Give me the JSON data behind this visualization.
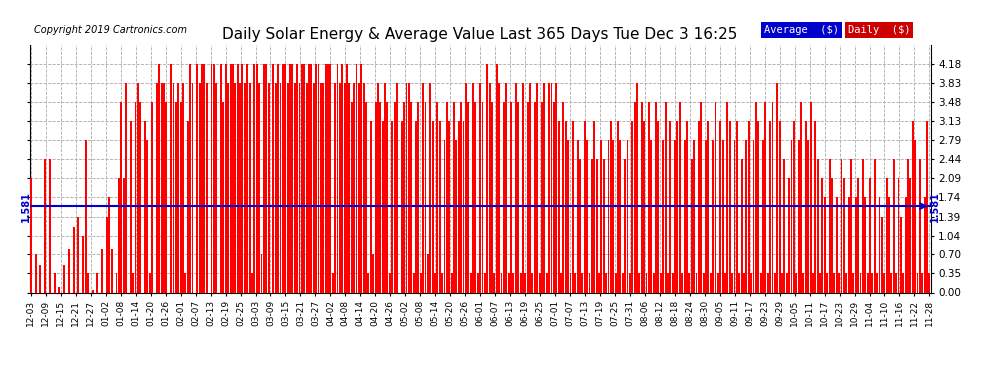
{
  "title": "Daily Solar Energy & Average Value Last 365 Days Tue Dec 3 16:25",
  "copyright": "Copyright 2019 Cartronics.com",
  "average_value": 1.581,
  "bar_color": "#FF0000",
  "avg_line_color": "#0000CC",
  "background_color": "#FFFFFF",
  "ylim": [
    0.0,
    4.53
  ],
  "yticks": [
    0.0,
    0.35,
    0.7,
    1.04,
    1.39,
    1.74,
    2.09,
    2.44,
    2.79,
    3.13,
    3.48,
    3.83,
    4.18
  ],
  "legend_avg_color": "#0000CC",
  "legend_daily_color": "#CC0000",
  "legend_avg_label": "Average  ($)",
  "legend_daily_label": "Daily  ($)",
  "xtick_labels": [
    "12-03",
    "12-09",
    "12-15",
    "12-21",
    "12-27",
    "01-02",
    "01-08",
    "01-14",
    "01-20",
    "01-26",
    "02-01",
    "02-07",
    "02-13",
    "02-19",
    "02-25",
    "03-03",
    "03-09",
    "03-15",
    "03-21",
    "03-27",
    "04-02",
    "04-08",
    "04-14",
    "04-20",
    "04-26",
    "05-02",
    "05-08",
    "05-14",
    "05-20",
    "05-26",
    "06-01",
    "06-07",
    "06-13",
    "06-19",
    "06-25",
    "07-01",
    "07-07",
    "07-13",
    "07-19",
    "07-25",
    "07-31",
    "08-06",
    "08-12",
    "08-18",
    "08-24",
    "08-30",
    "09-05",
    "09-11",
    "09-17",
    "09-23",
    "09-29",
    "10-05",
    "10-11",
    "10-17",
    "10-23",
    "10-29",
    "11-04",
    "11-10",
    "11-16",
    "11-22",
    "11-28"
  ],
  "daily_values": [
    2.09,
    0.0,
    0.7,
    0.0,
    0.5,
    0.0,
    2.44,
    0.0,
    2.44,
    0.0,
    0.35,
    0.0,
    0.1,
    0.0,
    0.5,
    0.0,
    0.8,
    0.0,
    1.2,
    0.0,
    1.39,
    0.0,
    1.04,
    2.79,
    0.35,
    0.0,
    0.05,
    0.0,
    0.35,
    0.0,
    0.8,
    0.0,
    1.39,
    1.74,
    0.8,
    0.0,
    0.35,
    2.09,
    3.48,
    2.09,
    3.83,
    0.0,
    3.13,
    0.35,
    3.48,
    3.83,
    3.48,
    0.0,
    3.13,
    2.79,
    0.35,
    3.48,
    0.0,
    3.83,
    4.18,
    3.83,
    3.83,
    3.48,
    0.0,
    4.18,
    3.83,
    3.48,
    3.83,
    3.48,
    3.83,
    0.35,
    3.13,
    4.18,
    3.83,
    0.0,
    4.18,
    3.83,
    4.18,
    4.18,
    3.83,
    0.0,
    4.18,
    4.18,
    3.83,
    0.0,
    4.18,
    3.48,
    4.18,
    3.83,
    4.18,
    4.18,
    3.83,
    4.18,
    3.83,
    4.18,
    3.83,
    4.18,
    3.83,
    0.35,
    4.18,
    4.18,
    3.83,
    0.7,
    4.18,
    4.18,
    3.83,
    0.0,
    4.18,
    3.83,
    4.18,
    3.83,
    4.18,
    4.18,
    3.83,
    4.18,
    4.18,
    3.83,
    4.18,
    3.83,
    4.18,
    4.18,
    3.83,
    4.18,
    4.18,
    3.83,
    4.18,
    4.18,
    3.83,
    3.83,
    4.18,
    4.18,
    4.18,
    0.35,
    3.83,
    4.18,
    3.83,
    4.18,
    3.83,
    4.18,
    3.83,
    3.48,
    3.83,
    4.18,
    3.83,
    4.18,
    3.83,
    3.48,
    0.35,
    3.13,
    0.7,
    3.48,
    3.83,
    3.48,
    3.13,
    3.83,
    3.48,
    0.35,
    3.13,
    3.48,
    3.83,
    0.0,
    3.13,
    3.48,
    3.83,
    3.83,
    3.48,
    0.35,
    3.13,
    3.48,
    0.35,
    3.83,
    3.48,
    0.7,
    3.83,
    3.13,
    0.35,
    3.48,
    3.13,
    0.35,
    2.79,
    3.48,
    3.13,
    0.35,
    3.48,
    2.79,
    3.13,
    3.48,
    3.13,
    3.83,
    3.48,
    0.35,
    3.83,
    3.48,
    0.35,
    3.83,
    3.48,
    0.35,
    4.18,
    3.83,
    3.48,
    0.35,
    4.18,
    3.83,
    0.35,
    3.48,
    3.83,
    0.35,
    3.48,
    0.35,
    3.83,
    3.48,
    0.35,
    3.83,
    0.35,
    3.48,
    3.83,
    0.35,
    3.48,
    3.83,
    0.35,
    3.48,
    3.83,
    0.35,
    3.83,
    3.83,
    3.48,
    3.83,
    3.13,
    0.35,
    3.48,
    3.13,
    2.79,
    0.35,
    3.13,
    0.35,
    2.79,
    2.44,
    0.35,
    3.13,
    2.79,
    0.35,
    2.44,
    3.13,
    2.44,
    0.35,
    2.79,
    2.44,
    0.35,
    2.79,
    3.13,
    2.79,
    0.35,
    3.13,
    2.79,
    0.35,
    2.44,
    2.79,
    0.35,
    3.13,
    3.48,
    3.83,
    0.35,
    3.48,
    3.13,
    0.35,
    3.48,
    2.79,
    0.35,
    3.48,
    3.13,
    0.35,
    2.79,
    3.48,
    0.35,
    3.13,
    0.35,
    2.79,
    3.13,
    3.48,
    0.35,
    2.79,
    3.13,
    0.35,
    2.44,
    2.79,
    0.35,
    3.13,
    3.48,
    0.35,
    2.79,
    3.13,
    0.35,
    2.79,
    3.48,
    0.35,
    3.13,
    2.79,
    0.35,
    3.48,
    3.13,
    0.35,
    2.79,
    3.13,
    0.35,
    2.44,
    0.35,
    2.79,
    3.13,
    0.35,
    2.79,
    3.48,
    3.13,
    0.35,
    2.79,
    3.48,
    0.35,
    3.13,
    3.48,
    0.35,
    3.83,
    3.13,
    0.35,
    2.44,
    0.35,
    2.09,
    2.79,
    3.13,
    0.35,
    2.79,
    3.48,
    0.35,
    3.13,
    2.79,
    3.48,
    0.35,
    3.13,
    2.44,
    0.35,
    2.09,
    1.74,
    0.35,
    2.44,
    2.09,
    0.35,
    1.74,
    0.35,
    2.44,
    2.09,
    0.35,
    1.74,
    2.44,
    0.35,
    1.74,
    2.09,
    0.35,
    2.44,
    1.74,
    0.35,
    2.09,
    0.35,
    2.44,
    0.35,
    1.74,
    1.39,
    0.35,
    2.09,
    1.74,
    0.35,
    2.44,
    0.35,
    2.09,
    1.39,
    0.35,
    1.74,
    2.44,
    2.09,
    3.13,
    2.79,
    0.35,
    2.44,
    0.35,
    1.74,
    3.13,
    0.35
  ]
}
